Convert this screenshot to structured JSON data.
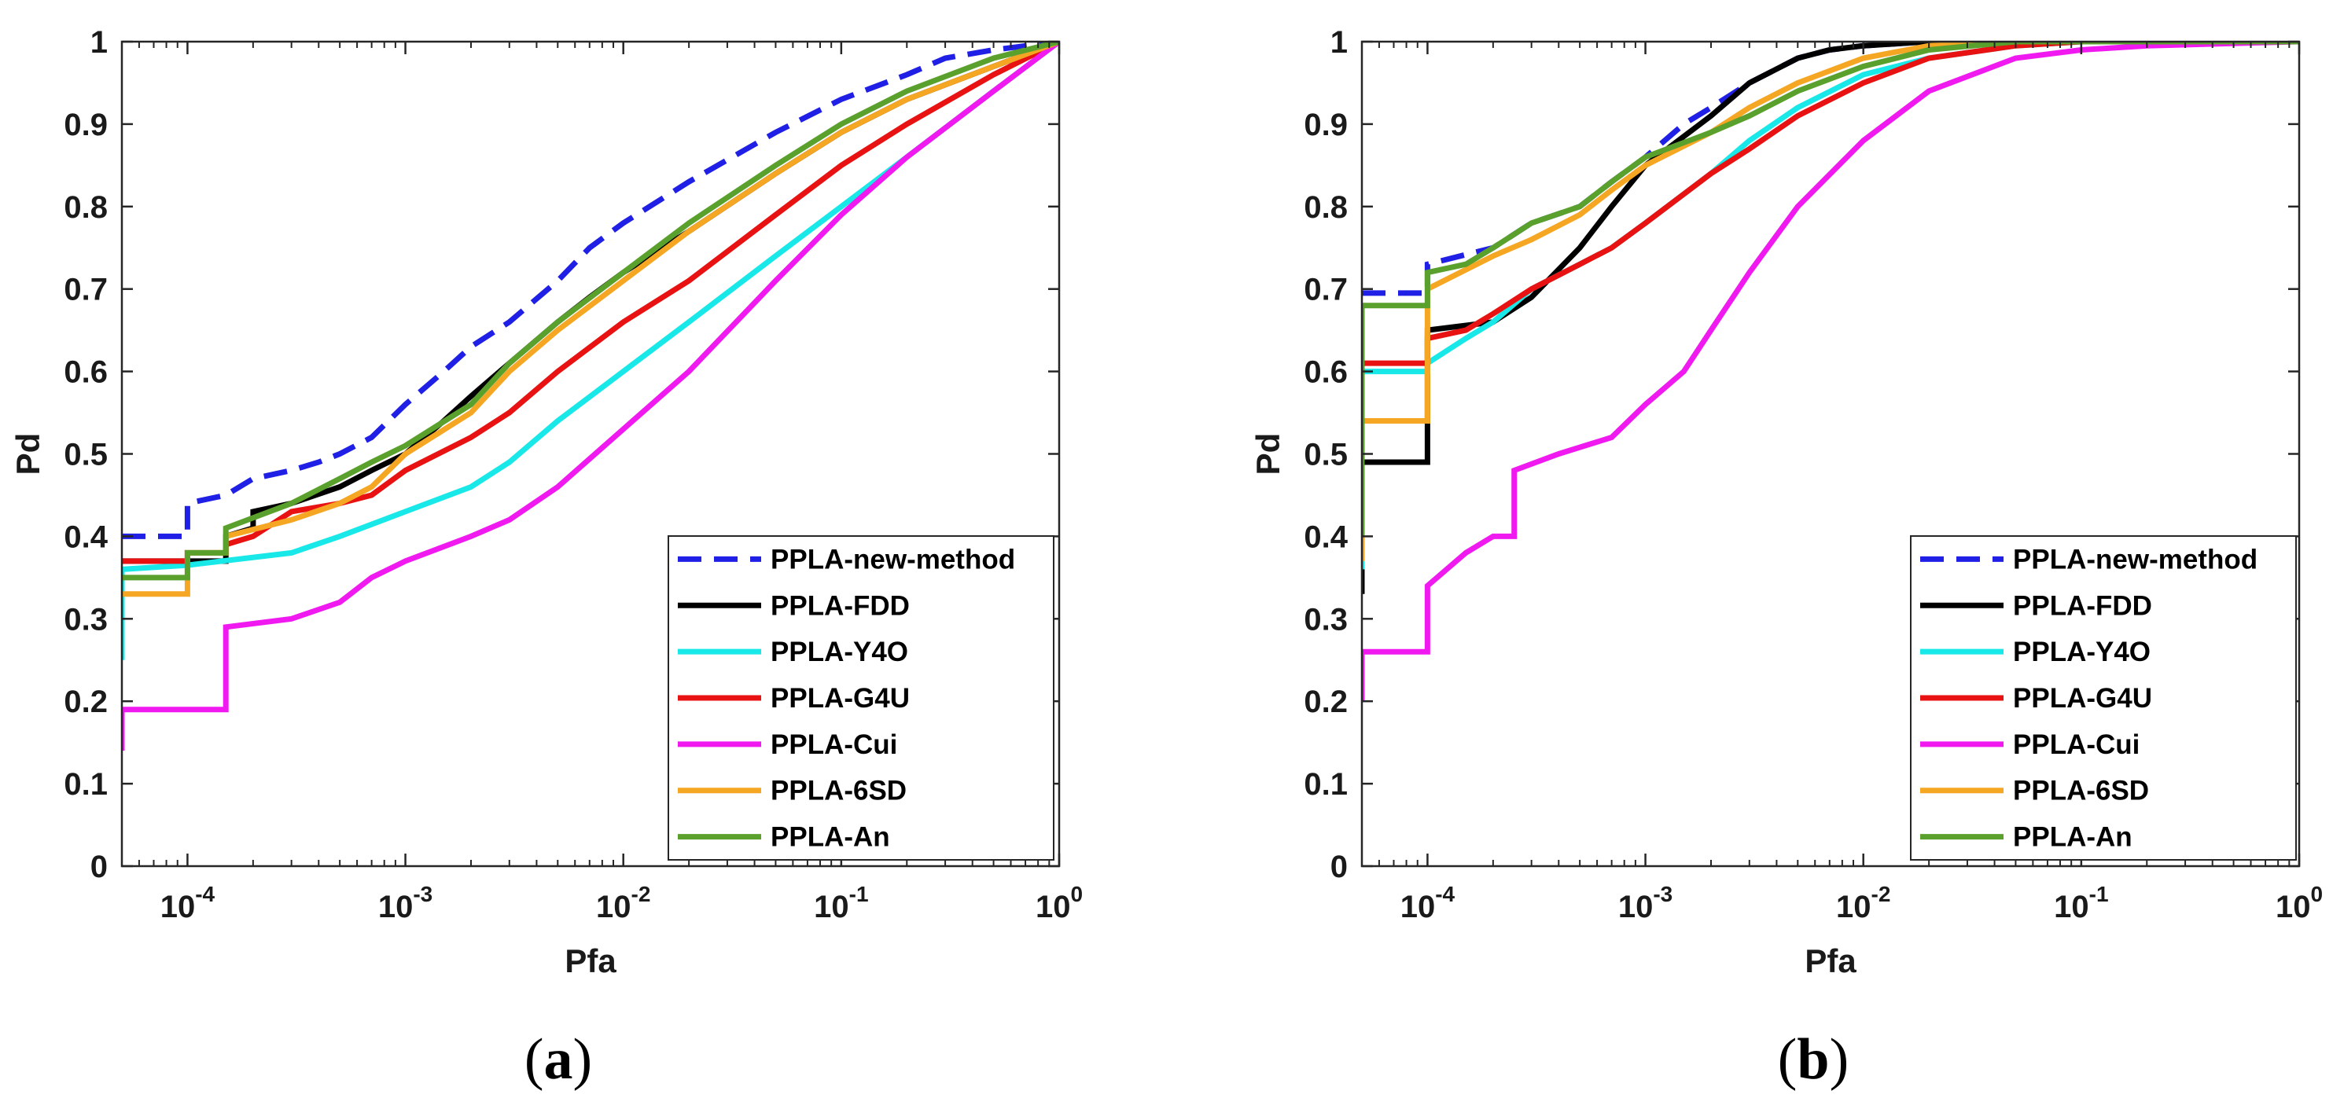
{
  "colors": {
    "PPLA-new-method": "#1f1fe6",
    "PPLA-FDD": "#000000",
    "PPLA-Y4O": "#18e8e8",
    "PPLA-G4U": "#e81212",
    "PPLA-Cui": "#f01af0",
    "PPLA-6SD": "#f5a623",
    "PPLA-An": "#5aa02c"
  },
  "chart_data": [
    {
      "type": "line",
      "caption": {
        "open": "(",
        "letter": "a",
        "close": ")"
      },
      "title": "",
      "xlabel": "Pfa",
      "ylabel": "Pd",
      "xscale": "log",
      "xlim": [
        5e-05,
        1
      ],
      "ylim": [
        0,
        1
      ],
      "xticks": [
        {
          "value": 0.0001,
          "base": "10",
          "exp": "-4"
        },
        {
          "value": 0.001,
          "base": "10",
          "exp": "-3"
        },
        {
          "value": 0.01,
          "base": "10",
          "exp": "-2"
        },
        {
          "value": 0.1,
          "base": "10",
          "exp": "-1"
        },
        {
          "value": 1,
          "base": "10",
          "exp": "0"
        }
      ],
      "yticks": [
        {
          "value": 0,
          "label": "0"
        },
        {
          "value": 0.1,
          "label": "0.1"
        },
        {
          "value": 0.2,
          "label": "0.2"
        },
        {
          "value": 0.3,
          "label": "0.3"
        },
        {
          "value": 0.4,
          "label": "0.4"
        },
        {
          "value": 0.5,
          "label": "0.5"
        },
        {
          "value": 0.6,
          "label": "0.6"
        },
        {
          "value": 0.7,
          "label": "0.7"
        },
        {
          "value": 0.8,
          "label": "0.8"
        },
        {
          "value": 0.9,
          "label": "0.9"
        },
        {
          "value": 1,
          "label": "1"
        }
      ],
      "grid": false,
      "legend_position": "bottom-right",
      "series": [
        {
          "name": "PPLA-new-method",
          "style": "dashed",
          "x": [
            5e-05,
            0.0001,
            0.0001,
            0.00015,
            0.0002,
            0.0003,
            0.0004,
            0.0005,
            0.0007,
            0.001,
            0.0015,
            0.002,
            0.003,
            0.005,
            0.007,
            0.01,
            0.02,
            0.05,
            0.1,
            0.2,
            0.3,
            0.5,
            1
          ],
          "y": [
            0.4,
            0.4,
            0.44,
            0.45,
            0.47,
            0.48,
            0.49,
            0.5,
            0.52,
            0.56,
            0.6,
            0.63,
            0.66,
            0.71,
            0.75,
            0.78,
            0.83,
            0.89,
            0.93,
            0.96,
            0.98,
            0.99,
            1.0
          ]
        },
        {
          "name": "PPLA-FDD",
          "style": "solid",
          "x": [
            5e-05,
            0.00015,
            0.00015,
            0.0002,
            0.0002,
            0.0003,
            0.0005,
            0.0007,
            0.001,
            0.0015,
            0.002,
            0.003,
            0.005,
            0.007,
            0.01,
            0.02,
            0.05,
            0.1,
            0.2,
            0.5,
            1
          ],
          "y": [
            0.37,
            0.37,
            0.4,
            0.41,
            0.43,
            0.44,
            0.46,
            0.48,
            0.5,
            0.54,
            0.57,
            0.61,
            0.66,
            0.69,
            0.72,
            0.77,
            0.84,
            0.89,
            0.93,
            0.97,
            1.0
          ]
        },
        {
          "name": "PPLA-Y4O",
          "style": "solid",
          "x": [
            5e-05,
            5e-05,
            0.0001,
            0.0003,
            0.0005,
            0.001,
            0.002,
            0.003,
            0.005,
            0.01,
            0.02,
            0.05,
            0.1,
            0.2,
            0.5,
            1
          ],
          "y": [
            0.25,
            0.36,
            0.365,
            0.38,
            0.4,
            0.43,
            0.46,
            0.49,
            0.54,
            0.6,
            0.66,
            0.74,
            0.8,
            0.86,
            0.94,
            1.0
          ]
        },
        {
          "name": "PPLA-G4U",
          "style": "solid",
          "x": [
            5e-05,
            0.0001,
            0.0001,
            0.00015,
            0.00015,
            0.0002,
            0.0003,
            0.0005,
            0.0007,
            0.001,
            0.002,
            0.003,
            0.005,
            0.01,
            0.02,
            0.05,
            0.1,
            0.2,
            0.5,
            1
          ],
          "y": [
            0.37,
            0.37,
            0.38,
            0.38,
            0.39,
            0.4,
            0.43,
            0.44,
            0.45,
            0.48,
            0.52,
            0.55,
            0.6,
            0.66,
            0.71,
            0.79,
            0.85,
            0.9,
            0.96,
            1.0
          ]
        },
        {
          "name": "PPLA-Cui",
          "style": "solid",
          "x": [
            5e-05,
            5e-05,
            0.00015,
            0.00015,
            0.0003,
            0.0005,
            0.0007,
            0.001,
            0.002,
            0.003,
            0.005,
            0.01,
            0.02,
            0.05,
            0.1,
            0.2,
            0.5,
            1
          ],
          "y": [
            0.14,
            0.19,
            0.19,
            0.29,
            0.3,
            0.32,
            0.35,
            0.37,
            0.4,
            0.42,
            0.46,
            0.53,
            0.6,
            0.71,
            0.79,
            0.86,
            0.94,
            1.0
          ]
        },
        {
          "name": "PPLA-6SD",
          "style": "solid",
          "x": [
            5e-05,
            0.0001,
            0.0001,
            0.00015,
            0.00015,
            0.0003,
            0.0005,
            0.0007,
            0.001,
            0.002,
            0.003,
            0.005,
            0.01,
            0.02,
            0.05,
            0.1,
            0.2,
            0.5,
            1
          ],
          "y": [
            0.33,
            0.33,
            0.38,
            0.38,
            0.4,
            0.42,
            0.44,
            0.46,
            0.5,
            0.55,
            0.6,
            0.65,
            0.71,
            0.77,
            0.84,
            0.89,
            0.93,
            0.97,
            1.0
          ]
        },
        {
          "name": "PPLA-An",
          "style": "solid",
          "x": [
            5e-05,
            0.0001,
            0.0001,
            0.00015,
            0.00015,
            0.0003,
            0.0005,
            0.0007,
            0.001,
            0.002,
            0.003,
            0.005,
            0.01,
            0.02,
            0.05,
            0.1,
            0.2,
            0.5,
            1
          ],
          "y": [
            0.35,
            0.35,
            0.38,
            0.38,
            0.41,
            0.44,
            0.47,
            0.49,
            0.51,
            0.56,
            0.61,
            0.66,
            0.72,
            0.78,
            0.85,
            0.9,
            0.94,
            0.98,
            1.0
          ]
        }
      ]
    },
    {
      "type": "line",
      "caption": {
        "open": "(",
        "letter": "b",
        "close": ")"
      },
      "title": "",
      "xlabel": "Pfa",
      "ylabel": "Pd",
      "xscale": "log",
      "xlim": [
        5e-05,
        1
      ],
      "ylim": [
        0,
        1
      ],
      "xticks": [
        {
          "value": 0.0001,
          "base": "10",
          "exp": "-4"
        },
        {
          "value": 0.001,
          "base": "10",
          "exp": "-3"
        },
        {
          "value": 0.01,
          "base": "10",
          "exp": "-2"
        },
        {
          "value": 0.1,
          "base": "10",
          "exp": "-1"
        },
        {
          "value": 1,
          "base": "10",
          "exp": "0"
        }
      ],
      "yticks": [
        {
          "value": 0,
          "label": "0"
        },
        {
          "value": 0.1,
          "label": "0.1"
        },
        {
          "value": 0.2,
          "label": "0.2"
        },
        {
          "value": 0.3,
          "label": "0.3"
        },
        {
          "value": 0.4,
          "label": "0.4"
        },
        {
          "value": 0.5,
          "label": "0.5"
        },
        {
          "value": 0.6,
          "label": "0.6"
        },
        {
          "value": 0.7,
          "label": "0.7"
        },
        {
          "value": 0.8,
          "label": "0.8"
        },
        {
          "value": 0.9,
          "label": "0.9"
        },
        {
          "value": 1,
          "label": "1"
        }
      ],
      "grid": false,
      "legend_position": "bottom-right",
      "series": [
        {
          "name": "PPLA-new-method",
          "style": "dashed",
          "x": [
            5e-05,
            0.0001,
            0.0001,
            0.0002,
            0.0003,
            0.0005,
            0.0007,
            0.001,
            0.0015,
            0.002,
            0.003,
            0.005,
            0.007,
            0.01,
            0.02,
            0.05,
            0.1,
            1
          ],
          "y": [
            0.695,
            0.695,
            0.73,
            0.75,
            0.78,
            0.8,
            0.83,
            0.86,
            0.9,
            0.92,
            0.95,
            0.98,
            0.99,
            0.995,
            1.0,
            1.0,
            1.0,
            1.0
          ]
        },
        {
          "name": "PPLA-FDD",
          "style": "solid",
          "x": [
            5e-05,
            5e-05,
            0.0001,
            0.0001,
            0.0002,
            0.0003,
            0.0005,
            0.0007,
            0.001,
            0.002,
            0.003,
            0.005,
            0.007,
            0.01,
            0.02,
            0.05,
            0.1,
            1
          ],
          "y": [
            0.33,
            0.49,
            0.49,
            0.65,
            0.66,
            0.69,
            0.75,
            0.8,
            0.85,
            0.91,
            0.95,
            0.98,
            0.99,
            0.995,
            1.0,
            1.0,
            1.0,
            1.0
          ]
        },
        {
          "name": "PPLA-Y4O",
          "style": "solid",
          "x": [
            5e-05,
            5e-05,
            0.0001,
            0.0001,
            0.00015,
            0.0002,
            0.0003,
            0.0005,
            0.0007,
            0.001,
            0.002,
            0.003,
            0.005,
            0.01,
            0.02,
            0.05,
            0.1,
            1
          ],
          "y": [
            0.36,
            0.6,
            0.6,
            0.61,
            0.64,
            0.66,
            0.7,
            0.73,
            0.75,
            0.78,
            0.84,
            0.88,
            0.92,
            0.96,
            0.98,
            0.995,
            1.0,
            1.0
          ]
        },
        {
          "name": "PPLA-G4U",
          "style": "solid",
          "x": [
            5e-05,
            5e-05,
            0.0001,
            0.0001,
            0.00015,
            0.0002,
            0.0003,
            0.0005,
            0.0007,
            0.001,
            0.002,
            0.003,
            0.005,
            0.01,
            0.02,
            0.05,
            0.1,
            1
          ],
          "y": [
            0.38,
            0.61,
            0.61,
            0.64,
            0.65,
            0.67,
            0.7,
            0.73,
            0.75,
            0.78,
            0.84,
            0.87,
            0.91,
            0.95,
            0.98,
            0.995,
            1.0,
            1.0
          ]
        },
        {
          "name": "PPLA-Cui",
          "style": "solid",
          "x": [
            5e-05,
            5e-05,
            0.0001,
            0.0001,
            0.00015,
            0.0002,
            0.00025,
            0.00025,
            0.0004,
            0.0007,
            0.001,
            0.0015,
            0.002,
            0.003,
            0.005,
            0.01,
            0.02,
            0.05,
            0.1,
            0.2,
            1
          ],
          "y": [
            0.2,
            0.26,
            0.26,
            0.34,
            0.38,
            0.4,
            0.4,
            0.48,
            0.5,
            0.52,
            0.56,
            0.6,
            0.65,
            0.72,
            0.8,
            0.88,
            0.94,
            0.98,
            0.99,
            0.995,
            1.0
          ]
        },
        {
          "name": "PPLA-6SD",
          "style": "solid",
          "x": [
            5e-05,
            5e-05,
            0.0001,
            0.0001,
            0.0002,
            0.0003,
            0.0005,
            0.0007,
            0.001,
            0.002,
            0.003,
            0.005,
            0.01,
            0.02,
            0.05,
            0.1,
            1
          ],
          "y": [
            0.37,
            0.54,
            0.54,
            0.7,
            0.74,
            0.76,
            0.79,
            0.82,
            0.85,
            0.89,
            0.92,
            0.95,
            0.98,
            0.995,
            1.0,
            1.0,
            1.0
          ]
        },
        {
          "name": "PPLA-An",
          "style": "solid",
          "x": [
            5e-05,
            5e-05,
            0.0001,
            0.0001,
            0.00015,
            0.0002,
            0.0003,
            0.0005,
            0.0007,
            0.001,
            0.002,
            0.003,
            0.005,
            0.01,
            0.02,
            0.05,
            0.1,
            1
          ],
          "y": [
            0.4,
            0.68,
            0.68,
            0.72,
            0.73,
            0.75,
            0.78,
            0.8,
            0.83,
            0.86,
            0.89,
            0.91,
            0.94,
            0.97,
            0.99,
            1.0,
            1.0,
            1.0
          ]
        }
      ]
    }
  ]
}
